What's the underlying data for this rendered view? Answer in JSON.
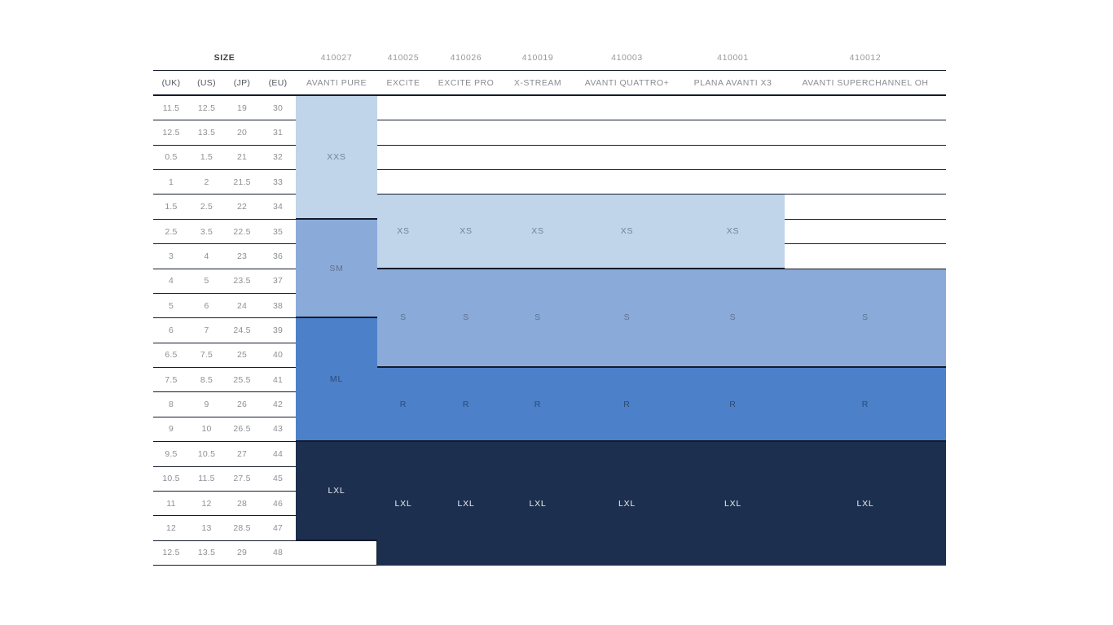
{
  "chart_data": {
    "type": "table",
    "title": "SIZE",
    "unit_columns": [
      "(UK)",
      "(US)",
      "(JP)",
      "(EU)"
    ],
    "size_rows": [
      [
        "11.5",
        "12.5",
        "19",
        "30"
      ],
      [
        "12.5",
        "13.5",
        "20",
        "31"
      ],
      [
        "0.5",
        "1.5",
        "21",
        "32"
      ],
      [
        "1",
        "2",
        "21.5",
        "33"
      ],
      [
        "1.5",
        "2.5",
        "22",
        "34"
      ],
      [
        "2.5",
        "3.5",
        "22.5",
        "35"
      ],
      [
        "3",
        "4",
        "23",
        "36"
      ],
      [
        "4",
        "5",
        "23.5",
        "37"
      ],
      [
        "5",
        "6",
        "24",
        "38"
      ],
      [
        "6",
        "7",
        "24.5",
        "39"
      ],
      [
        "6.5",
        "7.5",
        "25",
        "40"
      ],
      [
        "7.5",
        "8.5",
        "25.5",
        "41"
      ],
      [
        "8",
        "9",
        "26",
        "42"
      ],
      [
        "9",
        "10",
        "26.5",
        "43"
      ],
      [
        "9.5",
        "10.5",
        "27",
        "44"
      ],
      [
        "10.5",
        "11.5",
        "27.5",
        "45"
      ],
      [
        "11",
        "12",
        "28",
        "46"
      ],
      [
        "12",
        "13",
        "28.5",
        "47"
      ],
      [
        "12.5",
        "13.5",
        "29",
        "48"
      ]
    ],
    "products": [
      {
        "code": "410027",
        "name": "AVANTI PURE",
        "ranges": [
          {
            "label": "XXS",
            "eu_from": 30,
            "eu_to": 34,
            "shade": "light"
          },
          {
            "label": "SM",
            "eu_from": 35,
            "eu_to": 38,
            "shade": "medium"
          },
          {
            "label": "ML",
            "eu_from": 39,
            "eu_to": 43,
            "shade": "blue"
          },
          {
            "label": "LXL",
            "eu_from": 44,
            "eu_to": 47,
            "shade": "navy"
          }
        ]
      },
      {
        "code": "410025",
        "name": "EXCITE",
        "ranges": [
          {
            "label": "XS",
            "eu_from": 34,
            "eu_to": 36,
            "shade": "light"
          },
          {
            "label": "S",
            "eu_from": 37,
            "eu_to": 40,
            "shade": "medium"
          },
          {
            "label": "R",
            "eu_from": 41,
            "eu_to": 43,
            "shade": "blue"
          },
          {
            "label": "LXL",
            "eu_from": 44,
            "eu_to": 48,
            "shade": "navy"
          }
        ]
      },
      {
        "code": "410026",
        "name": "EXCITE PRO",
        "ranges": [
          {
            "label": "XS",
            "eu_from": 34,
            "eu_to": 36,
            "shade": "light"
          },
          {
            "label": "S",
            "eu_from": 37,
            "eu_to": 40,
            "shade": "medium"
          },
          {
            "label": "R",
            "eu_from": 41,
            "eu_to": 43,
            "shade": "blue"
          },
          {
            "label": "LXL",
            "eu_from": 44,
            "eu_to": 48,
            "shade": "navy"
          }
        ]
      },
      {
        "code": "410019",
        "name": "X-STREAM",
        "ranges": [
          {
            "label": "XS",
            "eu_from": 34,
            "eu_to": 36,
            "shade": "light"
          },
          {
            "label": "S",
            "eu_from": 37,
            "eu_to": 40,
            "shade": "medium"
          },
          {
            "label": "R",
            "eu_from": 41,
            "eu_to": 43,
            "shade": "blue"
          },
          {
            "label": "LXL",
            "eu_from": 44,
            "eu_to": 48,
            "shade": "navy"
          }
        ]
      },
      {
        "code": "410003",
        "name": "AVANTI QUATTRO+",
        "ranges": [
          {
            "label": "XS",
            "eu_from": 34,
            "eu_to": 36,
            "shade": "light"
          },
          {
            "label": "S",
            "eu_from": 37,
            "eu_to": 40,
            "shade": "medium"
          },
          {
            "label": "R",
            "eu_from": 41,
            "eu_to": 43,
            "shade": "blue"
          },
          {
            "label": "LXL",
            "eu_from": 44,
            "eu_to": 48,
            "shade": "navy"
          }
        ]
      },
      {
        "code": "410001",
        "name": "PLANA AVANTI X3",
        "ranges": [
          {
            "label": "XS",
            "eu_from": 34,
            "eu_to": 36,
            "shade": "light"
          },
          {
            "label": "S",
            "eu_from": 37,
            "eu_to": 40,
            "shade": "medium"
          },
          {
            "label": "R",
            "eu_from": 41,
            "eu_to": 43,
            "shade": "blue"
          },
          {
            "label": "LXL",
            "eu_from": 44,
            "eu_to": 48,
            "shade": "navy"
          }
        ]
      },
      {
        "code": "410012",
        "name": "AVANTI SUPERCHANNEL OH",
        "ranges": [
          {
            "label": "S",
            "eu_from": 37,
            "eu_to": 40,
            "shade": "medium"
          },
          {
            "label": "R",
            "eu_from": 41,
            "eu_to": 43,
            "shade": "blue"
          },
          {
            "label": "LXL",
            "eu_from": 44,
            "eu_to": 48,
            "shade": "navy"
          }
        ]
      }
    ],
    "shade_colors": {
      "light": "#c0d4ea",
      "medium": "#8aabd9",
      "blue": "#4c80c8",
      "navy": "#1c2f4e"
    },
    "line_color": "#131b2c"
  }
}
